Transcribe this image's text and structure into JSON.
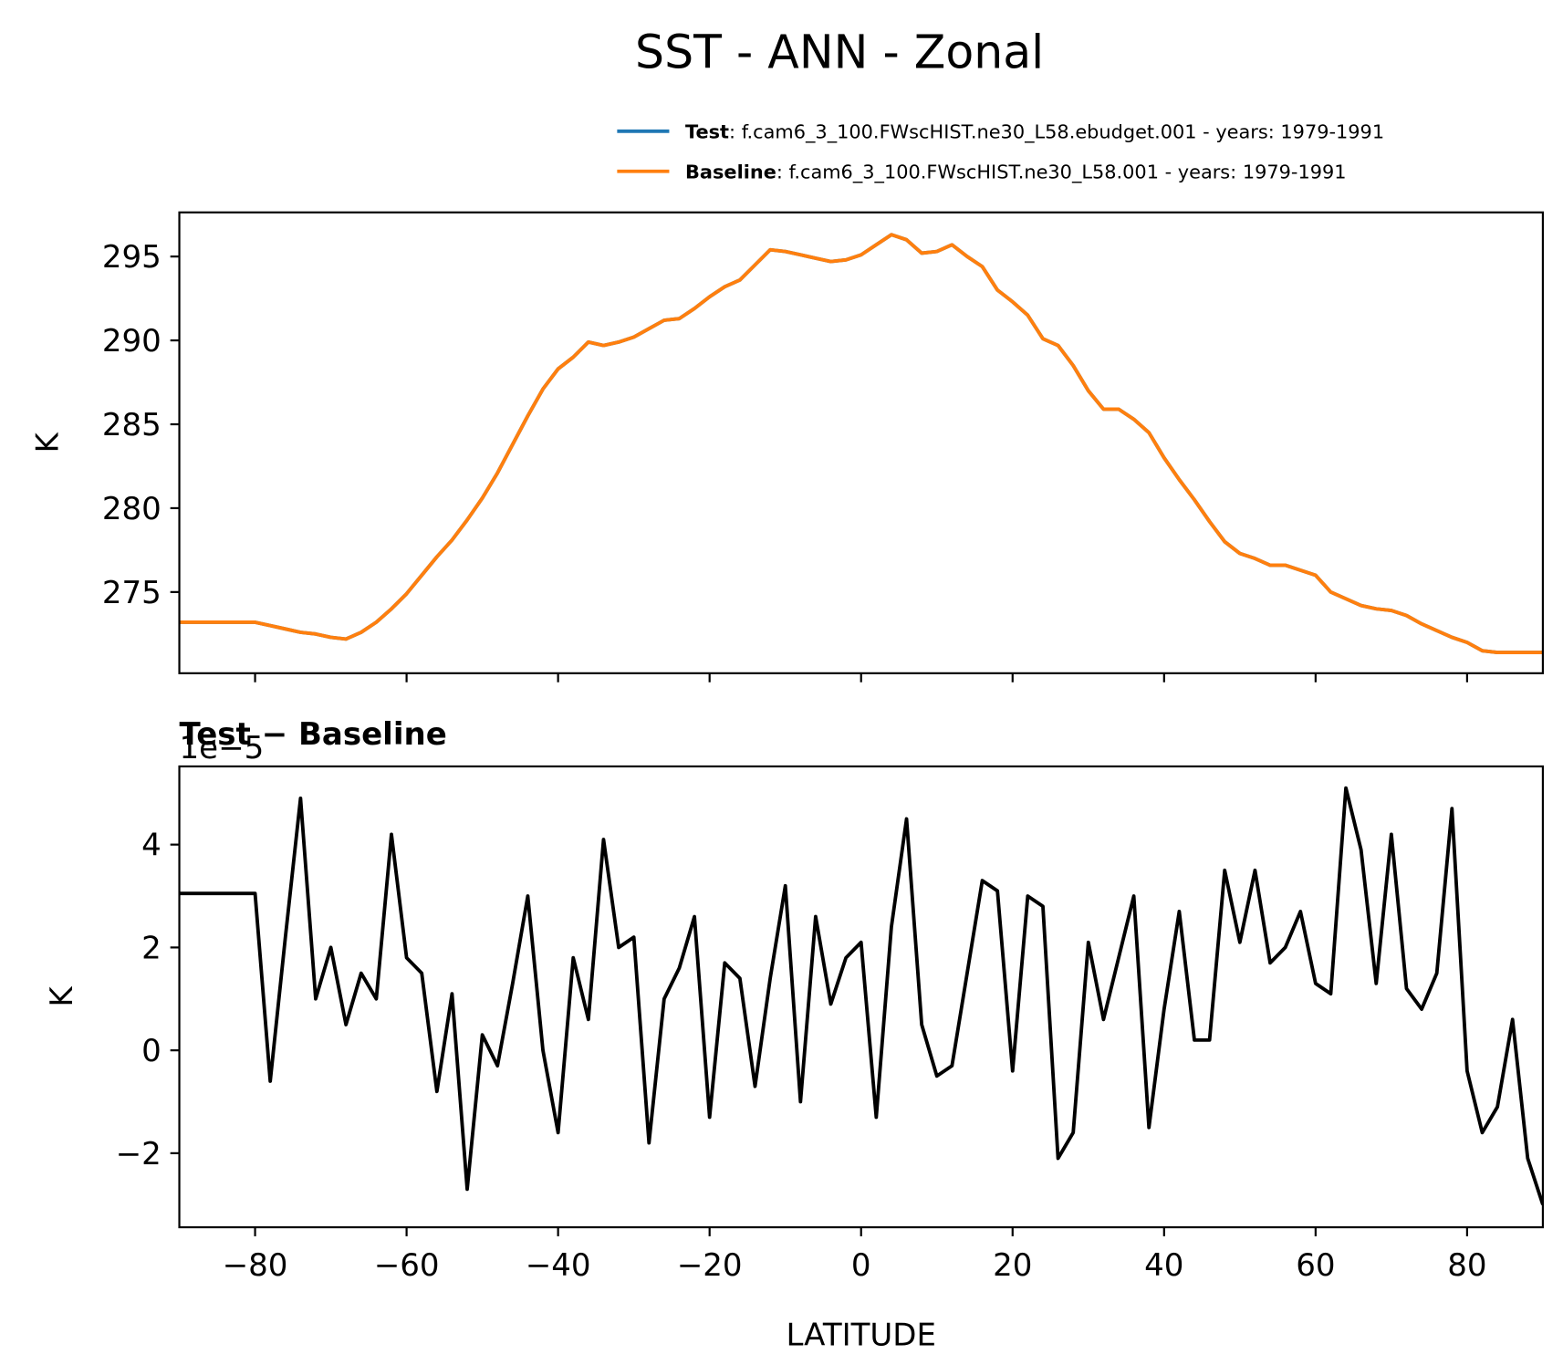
{
  "title": "SST - ANN - Zonal",
  "chart_data": [
    {
      "type": "line",
      "ylabel": "K",
      "x": [
        -90,
        -88,
        -86,
        -84,
        -82,
        -80,
        -78,
        -76,
        -74,
        -72,
        -70,
        -68,
        -66,
        -64,
        -62,
        -60,
        -58,
        -56,
        -54,
        -52,
        -50,
        -48,
        -46,
        -44,
        -42,
        -40,
        -38,
        -36,
        -34,
        -32,
        -30,
        -28,
        -26,
        -24,
        -22,
        -20,
        -18,
        -16,
        -14,
        -12,
        -10,
        -8,
        -6,
        -4,
        -2,
        0,
        2,
        4,
        6,
        8,
        10,
        12,
        14,
        16,
        18,
        20,
        22,
        24,
        26,
        28,
        30,
        32,
        34,
        36,
        38,
        40,
        42,
        44,
        46,
        48,
        50,
        52,
        54,
        56,
        58,
        60,
        62,
        64,
        66,
        68,
        70,
        72,
        74,
        76,
        78,
        80,
        82,
        84,
        86,
        88,
        90
      ],
      "series": [
        {
          "name": "Test",
          "label": ": f.cam6_3_100.FWscHIST.ne30_L58.ebudget.001 - years: 1979-1991",
          "color": "#1f77b4",
          "values": [
            273.2,
            273.2,
            273.2,
            273.2,
            273.2,
            273.2,
            273.0,
            272.8,
            272.6,
            272.5,
            272.3,
            272.2,
            272.6,
            273.2,
            274.0,
            274.9,
            276.0,
            277.1,
            278.1,
            279.3,
            280.6,
            282.1,
            283.8,
            285.5,
            287.1,
            288.3,
            289.0,
            289.9,
            289.7,
            289.9,
            290.2,
            290.7,
            291.2,
            291.3,
            291.9,
            292.6,
            293.2,
            293.6,
            294.5,
            295.4,
            295.3,
            295.1,
            294.9,
            294.7,
            294.8,
            295.1,
            295.7,
            296.3,
            296.0,
            295.2,
            295.3,
            295.7,
            295.0,
            294.4,
            293.0,
            292.3,
            291.5,
            290.1,
            289.7,
            288.5,
            287.0,
            285.9,
            285.9,
            285.3,
            284.5,
            283.0,
            281.7,
            280.5,
            279.2,
            278.0,
            277.3,
            277.0,
            276.6,
            276.6,
            276.3,
            276.0,
            275.0,
            274.6,
            274.2,
            274.0,
            273.9,
            273.6,
            273.1,
            272.7,
            272.3,
            272.0,
            271.5,
            271.4,
            271.4,
            271.4,
            271.4
          ]
        },
        {
          "name": "Baseline",
          "label": ": f.cam6_3_100.FWscHIST.ne30_L58.001 - years: 1979-1991",
          "color": "#ff7f0e",
          "values": [
            273.2,
            273.2,
            273.2,
            273.2,
            273.2,
            273.2,
            273.0,
            272.8,
            272.6,
            272.5,
            272.3,
            272.2,
            272.6,
            273.2,
            274.0,
            274.9,
            276.0,
            277.1,
            278.1,
            279.3,
            280.6,
            282.1,
            283.8,
            285.5,
            287.1,
            288.3,
            289.0,
            289.9,
            289.7,
            289.9,
            290.2,
            290.7,
            291.2,
            291.3,
            291.9,
            292.6,
            293.2,
            293.6,
            294.5,
            295.4,
            295.3,
            295.1,
            294.9,
            294.7,
            294.8,
            295.1,
            295.7,
            296.3,
            296.0,
            295.2,
            295.3,
            295.7,
            295.0,
            294.4,
            293.0,
            292.3,
            291.5,
            290.1,
            289.7,
            288.5,
            287.0,
            285.9,
            285.9,
            285.3,
            284.5,
            283.0,
            281.7,
            280.5,
            279.2,
            278.0,
            277.3,
            277.0,
            276.6,
            276.6,
            276.3,
            276.0,
            275.0,
            274.6,
            274.2,
            274.0,
            273.9,
            273.6,
            273.1,
            272.7,
            272.3,
            272.0,
            271.5,
            271.4,
            271.4,
            271.4,
            271.4
          ]
        }
      ],
      "xlim": [
        -90,
        90
      ],
      "xticks": [
        -80,
        -60,
        -40,
        -20,
        0,
        20,
        40,
        60,
        80
      ],
      "xticklabels": false,
      "ylim": [
        270.16,
        297.63
      ],
      "yticks": [
        275,
        280,
        285,
        290,
        295
      ]
    },
    {
      "type": "line",
      "title": "Test − Baseline",
      "offset_label": "1e−5",
      "ylabel": "K",
      "xlabel": "LATITUDE",
      "x": [
        -90,
        -88,
        -86,
        -84,
        -82,
        -80,
        -78,
        -76,
        -74,
        -72,
        -70,
        -68,
        -66,
        -64,
        -62,
        -60,
        -58,
        -56,
        -54,
        -52,
        -50,
        -48,
        -46,
        -44,
        -42,
        -40,
        -38,
        -36,
        -34,
        -32,
        -30,
        -28,
        -26,
        -24,
        -22,
        -20,
        -18,
        -16,
        -14,
        -12,
        -10,
        -8,
        -6,
        -4,
        -2,
        0,
        2,
        4,
        6,
        8,
        10,
        12,
        14,
        16,
        18,
        20,
        22,
        24,
        26,
        28,
        30,
        32,
        34,
        36,
        38,
        40,
        42,
        44,
        46,
        48,
        50,
        52,
        54,
        56,
        58,
        60,
        62,
        64,
        66,
        68,
        70,
        72,
        74,
        76,
        78,
        80,
        82,
        84,
        86,
        88,
        90
      ],
      "series": [
        {
          "color": "#000000",
          "values": [
            3.05,
            3.05,
            3.05,
            3.05,
            3.05,
            3.05,
            -0.6,
            2.2,
            4.9,
            1.0,
            2.0,
            0.5,
            1.5,
            1.0,
            4.2,
            1.8,
            1.5,
            -0.8,
            1.1,
            -2.7,
            0.3,
            -0.3,
            1.3,
            3.0,
            0.0,
            -1.6,
            1.8,
            0.6,
            4.1,
            2.0,
            2.2,
            -1.8,
            1.0,
            1.6,
            2.6,
            -1.3,
            1.7,
            1.4,
            -0.7,
            1.4,
            3.2,
            -1.0,
            2.6,
            0.9,
            1.8,
            2.1,
            -1.3,
            2.4,
            4.5,
            0.5,
            -0.5,
            -0.3,
            1.5,
            3.3,
            3.1,
            -0.4,
            3.0,
            2.8,
            -2.1,
            -1.6,
            2.1,
            0.6,
            1.8,
            3.0,
            -1.5,
            0.8,
            2.7,
            0.2,
            0.2,
            3.5,
            2.1,
            3.5,
            1.7,
            2.0,
            2.7,
            1.3,
            1.1,
            5.1,
            3.9,
            1.3,
            4.2,
            1.2,
            0.8,
            1.5,
            4.7,
            -0.4,
            -1.6,
            -1.1,
            0.6,
            -2.1,
            -3.0
          ]
        }
      ],
      "xlim": [
        -90,
        90
      ],
      "xticks": [
        {
          "value": -80,
          "label": "−80"
        },
        {
          "value": -60,
          "label": "−60"
        },
        {
          "value": -40,
          "label": "−40"
        },
        {
          "value": -20,
          "label": "−20"
        },
        0,
        20,
        40,
        60,
        80
      ],
      "xticklabels": true,
      "ylim": [
        -3.44,
        5.52
      ],
      "yticks": [
        {
          "value": -2,
          "label": "−2"
        },
        0,
        2,
        4
      ]
    }
  ]
}
